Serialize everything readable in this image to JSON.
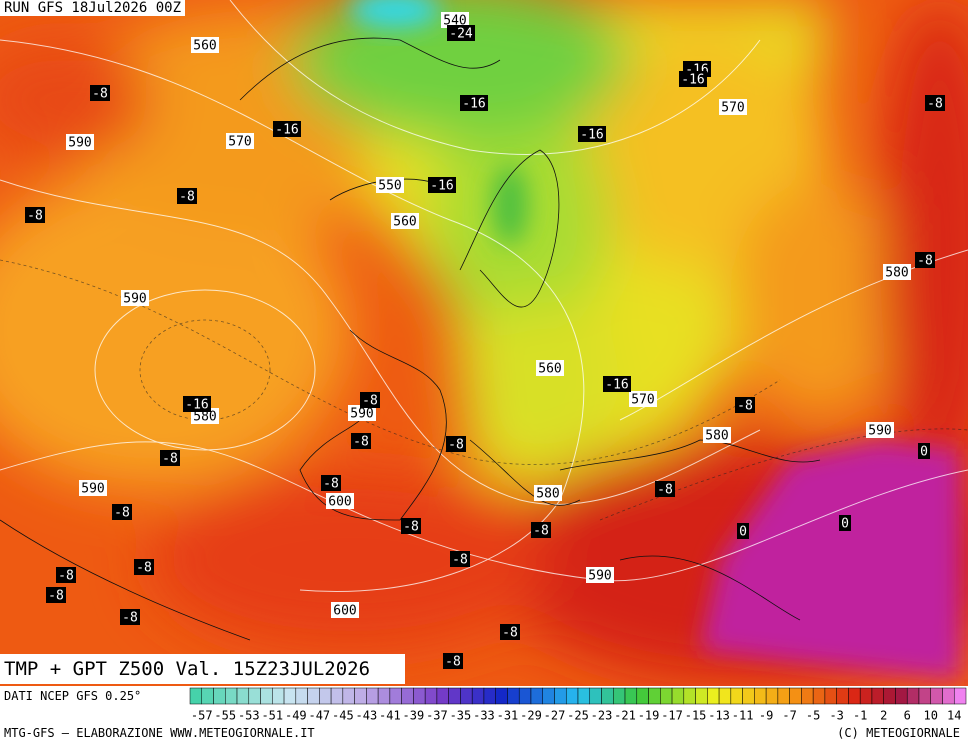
{
  "header": {
    "run": "RUN GFS 18Jul2026 00Z",
    "title": "TMP + GPT Z500 Val. 15Z23JUL2026"
  },
  "footer": {
    "source": "DATI NCEP GFS 0.25°",
    "credit": "MTG-GFS — ELABORAZIONE WWW.METEOGIORNALE.IT",
    "copyright": "(C) METEOGIORNALE"
  },
  "contour_labels": [
    "540",
    "560",
    "590",
    "570",
    "550",
    "560",
    "590",
    "570",
    "580",
    "560",
    "570",
    "590",
    "580",
    "580",
    "590",
    "590",
    "600",
    "580",
    "590",
    "600"
  ],
  "temperature_labels": [
    "-24",
    "-16",
    "-16",
    "-8",
    "-16",
    "-16",
    "-16",
    "-8",
    "-16",
    "-8",
    "-8",
    "-8",
    "-16",
    "-16",
    "-8",
    "-8",
    "-8",
    "-8",
    "-8",
    "-8",
    "-8",
    "-8",
    "-8",
    "-8",
    "-8",
    "-8",
    "-8",
    "-8",
    "-8",
    "-8",
    "-8",
    "0",
    "0",
    "0"
  ],
  "colorbar_labels": [
    "-57",
    "-55",
    "-53",
    "-51",
    "-49",
    "-47",
    "-45",
    "-43",
    "-41",
    "-39",
    "-37",
    "-35",
    "-33",
    "-31",
    "-29",
    "-27",
    "-25",
    "-23",
    "-21",
    "-19",
    "-17",
    "-15",
    "-13",
    "-11",
    "-9",
    "-7",
    "-5",
    "-3",
    "-1",
    "2",
    "6",
    "10",
    "14"
  ]
}
